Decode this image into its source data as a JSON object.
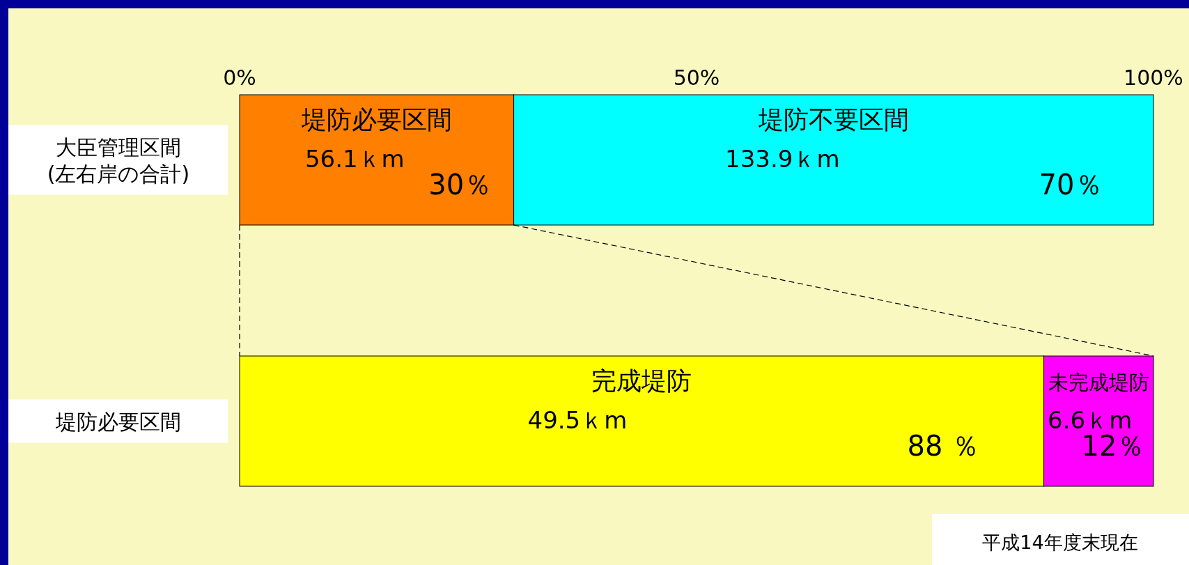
{
  "chart_data": {
    "type": "bar",
    "orientation": "horizontal",
    "stacked": true,
    "categories": [
      "大臣管理区間\n(左右岸の合計)",
      "堤防必要区間"
    ],
    "xlim": [
      0,
      100
    ],
    "xticks": [
      {
        "value": 0,
        "label": "0%"
      },
      {
        "value": 50,
        "label": "50%"
      },
      {
        "value": 100,
        "label": "100%"
      }
    ],
    "series": [
      {
        "name": "堤防必要区間",
        "color": "#ff8000",
        "values": [
          30,
          null
        ],
        "value_labels": [
          "30％",
          null
        ]
      },
      {
        "name": "堤防不要区間",
        "color": "#00ffff",
        "values": [
          70,
          null
        ],
        "value_labels": [
          "70％",
          null
        ]
      },
      {
        "name": "完成堤防",
        "color": "#ffff00",
        "values": [
          null,
          88
        ],
        "value_labels": [
          null,
          "88 ％"
        ]
      },
      {
        "name": "未完成堤防",
        "color": "#ff00ff",
        "values": [
          null,
          12
        ],
        "value_labels": [
          null,
          "12％"
        ]
      }
    ],
    "annotations": [
      "56.1ｋm",
      "133.9ｋm",
      "49.5ｋm",
      "6.6ｋm",
      "平成14年度末現在"
    ]
  }
}
